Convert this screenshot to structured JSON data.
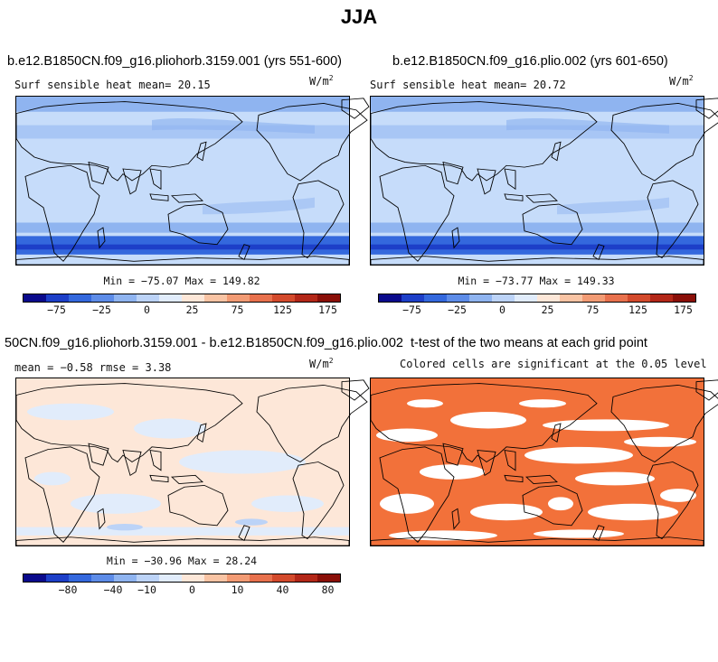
{
  "title": "JJA",
  "units": "W/m",
  "units_exp": "2",
  "colors": {
    "ocean_base": "#c6dcfa",
    "land_base": "#fde3d4",
    "coast": "#000000",
    "signif": "#f2713a",
    "nonsig": "#ffffff"
  },
  "colorbar_colors": [
    "#0a0a8c",
    "#1d3fc8",
    "#3468dd",
    "#5d8ce8",
    "#8fb4f0",
    "#bcd3f7",
    "#e1ecfb",
    "#fde7d8",
    "#f9c4a4",
    "#f29b74",
    "#e8714d",
    "#d34a2c",
    "#b32718",
    "#8a0f08"
  ],
  "panels": [
    {
      "title": "b.e12.B1850CN.f09_g16.pliohorb.3159.001 (yrs 551-600)",
      "left_label": "Surf sensible heat   mean=  20.15",
      "minmax": "Min = −75.07 Max = 149.82",
      "ticks": [
        "−75",
        "−25",
        "0",
        "25",
        "75",
        "125",
        "175"
      ]
    },
    {
      "title": "b.e12.B1850CN.f09_g16.plio.002 (yrs 601-650)",
      "left_label": "Surf sensible heat   mean=  20.72",
      "minmax": "Min = −73.77 Max = 149.33",
      "ticks": [
        "−75",
        "−25",
        "0",
        "25",
        "75",
        "125",
        "175"
      ]
    },
    {
      "title": "50CN.f09_g16.pliohorb.3159.001 - b.e12.B1850CN.f09_g16.plio.002",
      "left_label": "mean =  −0.58    rmse =   3.38",
      "minmax": "Min = −30.96 Max =  28.24",
      "ticks": [
        "−80",
        "−40",
        "−10",
        "0",
        "10",
        "40",
        "80"
      ]
    },
    {
      "title": "t-test of the two means at each grid point",
      "subtitle": "Colored cells are significant at the 0.05 level"
    }
  ]
}
